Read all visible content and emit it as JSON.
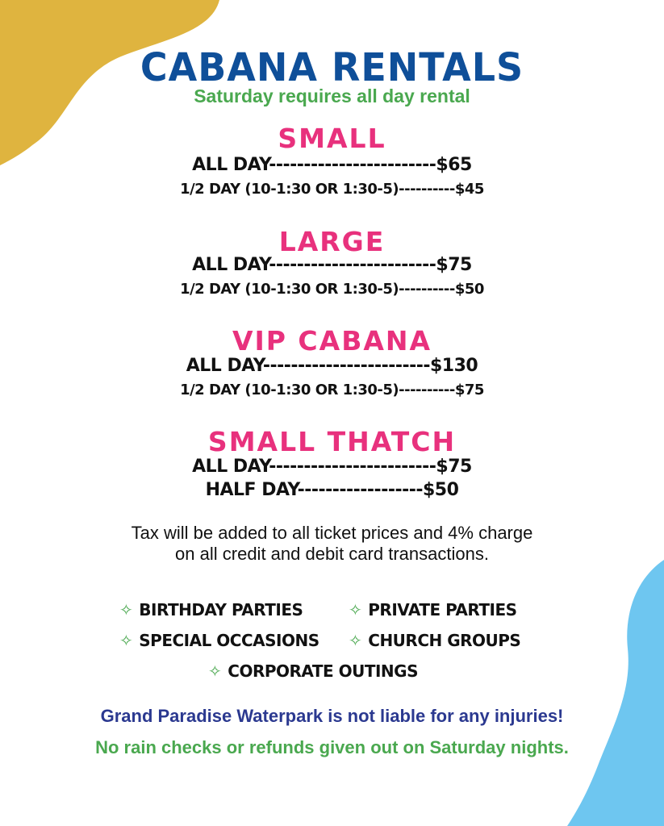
{
  "title": "Cabana Rentals",
  "subtitle": "Saturday  requires all day rental",
  "sections": [
    {
      "name": "Small",
      "lines": [
        "ALL DAY------------------------$65",
        "1/2 DAY (10-1:30 OR 1:30-5)----------$45"
      ]
    },
    {
      "name": "Large",
      "lines": [
        "ALL DAY------------------------$75",
        "1/2 DAY (10-1:30 OR 1:30-5)----------$50"
      ]
    },
    {
      "name": "VIP Cabana",
      "lines": [
        "ALL DAY------------------------$130",
        "1/2 DAY (10-1:30 OR 1:30-5)----------$75"
      ]
    },
    {
      "name": "Small Thatch",
      "lines": [
        "ALL DAY------------------------$75",
        "HALF DAY------------------$50"
      ]
    }
  ],
  "tax_note": [
    "Tax will be added to all ticket prices and 4% charge",
    "on all credit and debit card transactions."
  ],
  "events": [
    "Birthday Parties",
    "Private Parties",
    "Special Occasions",
    "Church Groups",
    "Corporate Outings"
  ],
  "bullet_icon": "sparkle-star-icon",
  "footer": {
    "liability": "Grand Paradise Waterpark is not liable for any injuries!",
    "rain": "No rain checks or refunds given out on Saturday nights."
  },
  "colors": {
    "title": "#0f4f99",
    "section": "#e8317d",
    "green": "#4aa84f",
    "navy": "#2b3990",
    "blob_yellow": "#dfb43f",
    "blob_blue": "#6ec6f0"
  }
}
